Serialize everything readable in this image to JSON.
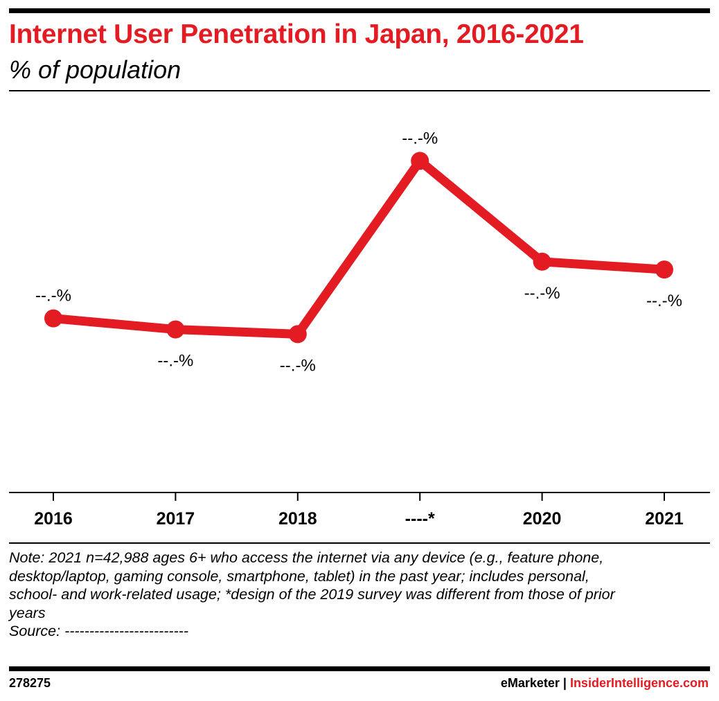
{
  "header": {
    "title": "Internet User Penetration in Japan, 2016-2021",
    "subtitle": "% of population"
  },
  "chart_data": {
    "type": "line",
    "title": "Internet User Penetration in Japan, 2016-2021",
    "subtitle": "% of population",
    "categories": [
      "2016",
      "2017",
      "2018",
      "----*",
      "2020",
      "2021"
    ],
    "series": [
      {
        "values": [
          79.8,
          79.1,
          78.8,
          89.8,
          83.4,
          82.9
        ]
      }
    ],
    "data_labels": [
      "--.-%",
      "--.-%",
      "--.-%",
      "--.-%",
      "--.-%",
      "--.-%"
    ],
    "ylim": [
      72,
      91
    ],
    "grid": false,
    "legend": "none",
    "colors": {
      "line": "#e31b23",
      "text": "#000000"
    }
  },
  "footer": {
    "note_lines": [
      "Note: 2021 n=42,988 ages 6+ who access the internet via any device (e.g., feature phone,",
      "desktop/laptop, gaming console, smartphone, tablet) in the past year; includes personal,",
      "school- and work-related usage; *design of the 2019 survey was different from those of prior",
      "years"
    ],
    "source": "Source: -------------------------",
    "chart_id": "278275",
    "brand_left": "eMarketer",
    "brand_sep": " | ",
    "brand_right": "InsiderIntelligence.com"
  }
}
